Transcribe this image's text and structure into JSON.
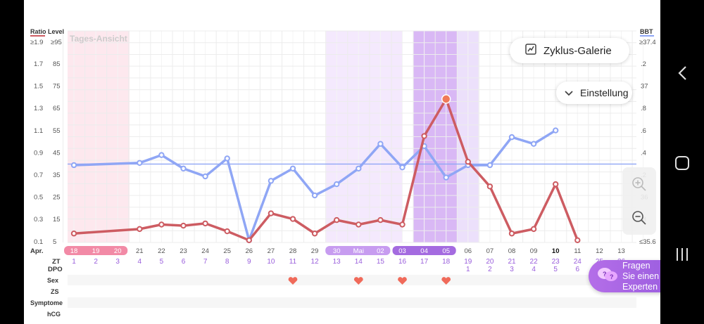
{
  "header": {
    "ratio_label": "Ratio Level",
    "bbt_label": "BBT",
    "view_label": "Tages-Ansicht",
    "ratio_top": "≥1.9",
    "level_top": "≥95",
    "bbt_top": "≥37.4",
    "bbt_bottom": "≤35.6"
  },
  "buttons": {
    "gallery": "Zyklus-Galerie",
    "settings": "Einstellung",
    "ask_line1": "Fragen",
    "ask_line2": "Sie einen",
    "ask_line3": "Experten"
  },
  "axes": {
    "ratio_ticks": [
      "1.7",
      "1.5",
      "1.3",
      "1.1",
      "0.9",
      "0.7",
      "0.5",
      "0.3",
      "0.1"
    ],
    "level_ticks": [
      "85",
      "75",
      "65",
      "55",
      "45",
      "35",
      "25",
      "15",
      "5"
    ],
    "bbt_ticks": [
      ".2",
      "37",
      ".8",
      ".6",
      ".4",
      ".2",
      "36",
      ".8"
    ]
  },
  "rows": {
    "month": "Apr.",
    "zt": "ZT",
    "dpo": "DPO",
    "sex": "Sex",
    "zs": "ZS",
    "symptoms": "Symptome",
    "hcg": "hCG"
  },
  "chart_data": {
    "type": "line",
    "dates": [
      "18",
      "19",
      "20",
      "21",
      "22",
      "23",
      "24",
      "25",
      "26",
      "27",
      "28",
      "29",
      "30",
      "Mai",
      "02",
      "03",
      "04",
      "05",
      "06",
      "07",
      "08",
      "09",
      "10",
      "11",
      "12",
      "13"
    ],
    "zt": [
      "1",
      "2",
      "3",
      "4",
      "5",
      "6",
      "7",
      "8",
      "9",
      "10",
      "11",
      "12",
      "13",
      "14",
      "15",
      "16",
      "17",
      "18",
      "19",
      "20",
      "21",
      "22",
      "23",
      "24",
      "25",
      "26"
    ],
    "dpo": [
      "",
      "",
      "",
      "",
      "",
      "",
      "",
      "",
      "",
      "",
      "",
      "",
      "",
      "",
      "",
      "",
      "",
      "",
      "1",
      "2",
      "3",
      "4",
      "5",
      "6",
      "",
      ""
    ],
    "sex_days": [
      10,
      13,
      15,
      17
    ],
    "series": [
      {
        "name": "BBT",
        "color": "#8fa6f5",
        "points": [
          [
            0,
            36.29
          ],
          [
            3,
            36.31
          ],
          [
            4,
            36.38
          ],
          [
            5,
            36.26
          ],
          [
            6,
            36.19
          ],
          [
            7,
            36.35
          ],
          [
            8,
            35.62
          ],
          [
            9,
            36.15
          ],
          [
            10,
            36.26
          ],
          [
            11,
            36.02
          ],
          [
            12,
            36.12
          ],
          [
            13,
            36.26
          ],
          [
            14,
            36.48
          ],
          [
            15,
            36.27
          ],
          [
            16,
            36.46
          ],
          [
            17,
            36.18
          ],
          [
            18,
            36.29
          ],
          [
            19,
            36.29
          ],
          [
            20,
            36.54
          ],
          [
            21,
            36.48
          ],
          [
            22,
            36.6
          ]
        ]
      },
      {
        "name": "Ratio",
        "color": "#cd5c62",
        "points": [
          [
            0,
            0.18
          ],
          [
            3,
            0.22
          ],
          [
            4,
            0.26
          ],
          [
            5,
            0.25
          ],
          [
            6,
            0.27
          ],
          [
            7,
            0.2
          ],
          [
            8,
            0.12
          ],
          [
            9,
            0.36
          ],
          [
            10,
            0.31
          ],
          [
            11,
            0.18
          ],
          [
            12,
            0.3
          ],
          [
            13,
            0.26
          ],
          [
            14,
            0.3
          ],
          [
            15,
            0.26
          ],
          [
            16,
            1.05
          ],
          [
            17,
            1.38
          ],
          [
            18,
            0.82
          ],
          [
            19,
            0.6
          ],
          [
            20,
            0.18
          ],
          [
            21,
            0.22
          ],
          [
            22,
            0.62
          ],
          [
            23,
            0.12
          ]
        ]
      }
    ],
    "baseline_bbt": 36.3,
    "ylim_ratio": [
      0.1,
      1.9
    ],
    "ylim_bbt": [
      35.6,
      37.4
    ]
  },
  "colors": {
    "period": "#f28aa6",
    "fertile": "#d9b8f5",
    "ovulation": "#a46be0",
    "heart": "#f06a5a"
  }
}
